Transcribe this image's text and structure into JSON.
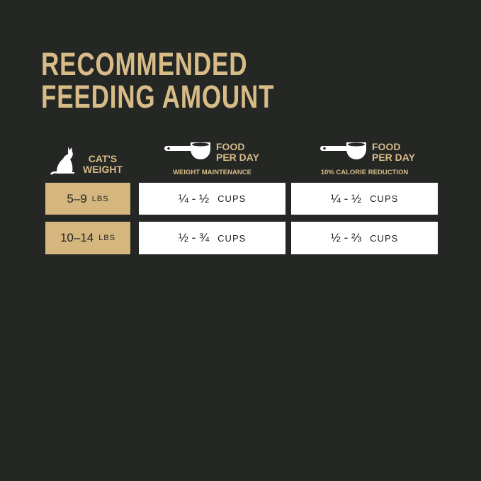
{
  "title": {
    "line1": "RECOMMENDED",
    "line2": "FEEDING AMOUNT"
  },
  "colors": {
    "background": "#252725",
    "accent": "#d7bc88",
    "cell_gold": "#d5b67f"
  },
  "header": {
    "weight": {
      "line1": "CAT'S",
      "line2": "WEIGHT",
      "icon": "cat-icon"
    },
    "col1": {
      "line1": "FOOD",
      "line2": "PER DAY",
      "sub": "WEIGHT MAINTENANCE",
      "icon": "measuring-cup-icon"
    },
    "col2": {
      "line1": "FOOD",
      "line2": "PER DAY",
      "sub": "10% CALORIE REDUCTION",
      "icon": "measuring-cup-icon"
    }
  },
  "rows": [
    {
      "weight": "5–9",
      "unit": "LBS",
      "maintenance": "¼ - ½",
      "reduction": "¼ - ½",
      "cups": "CUPS"
    },
    {
      "weight": "10–14",
      "unit": "LBS",
      "maintenance": "½ - ¾",
      "reduction": "½ - ⅔",
      "cups": "CUPS"
    }
  ]
}
